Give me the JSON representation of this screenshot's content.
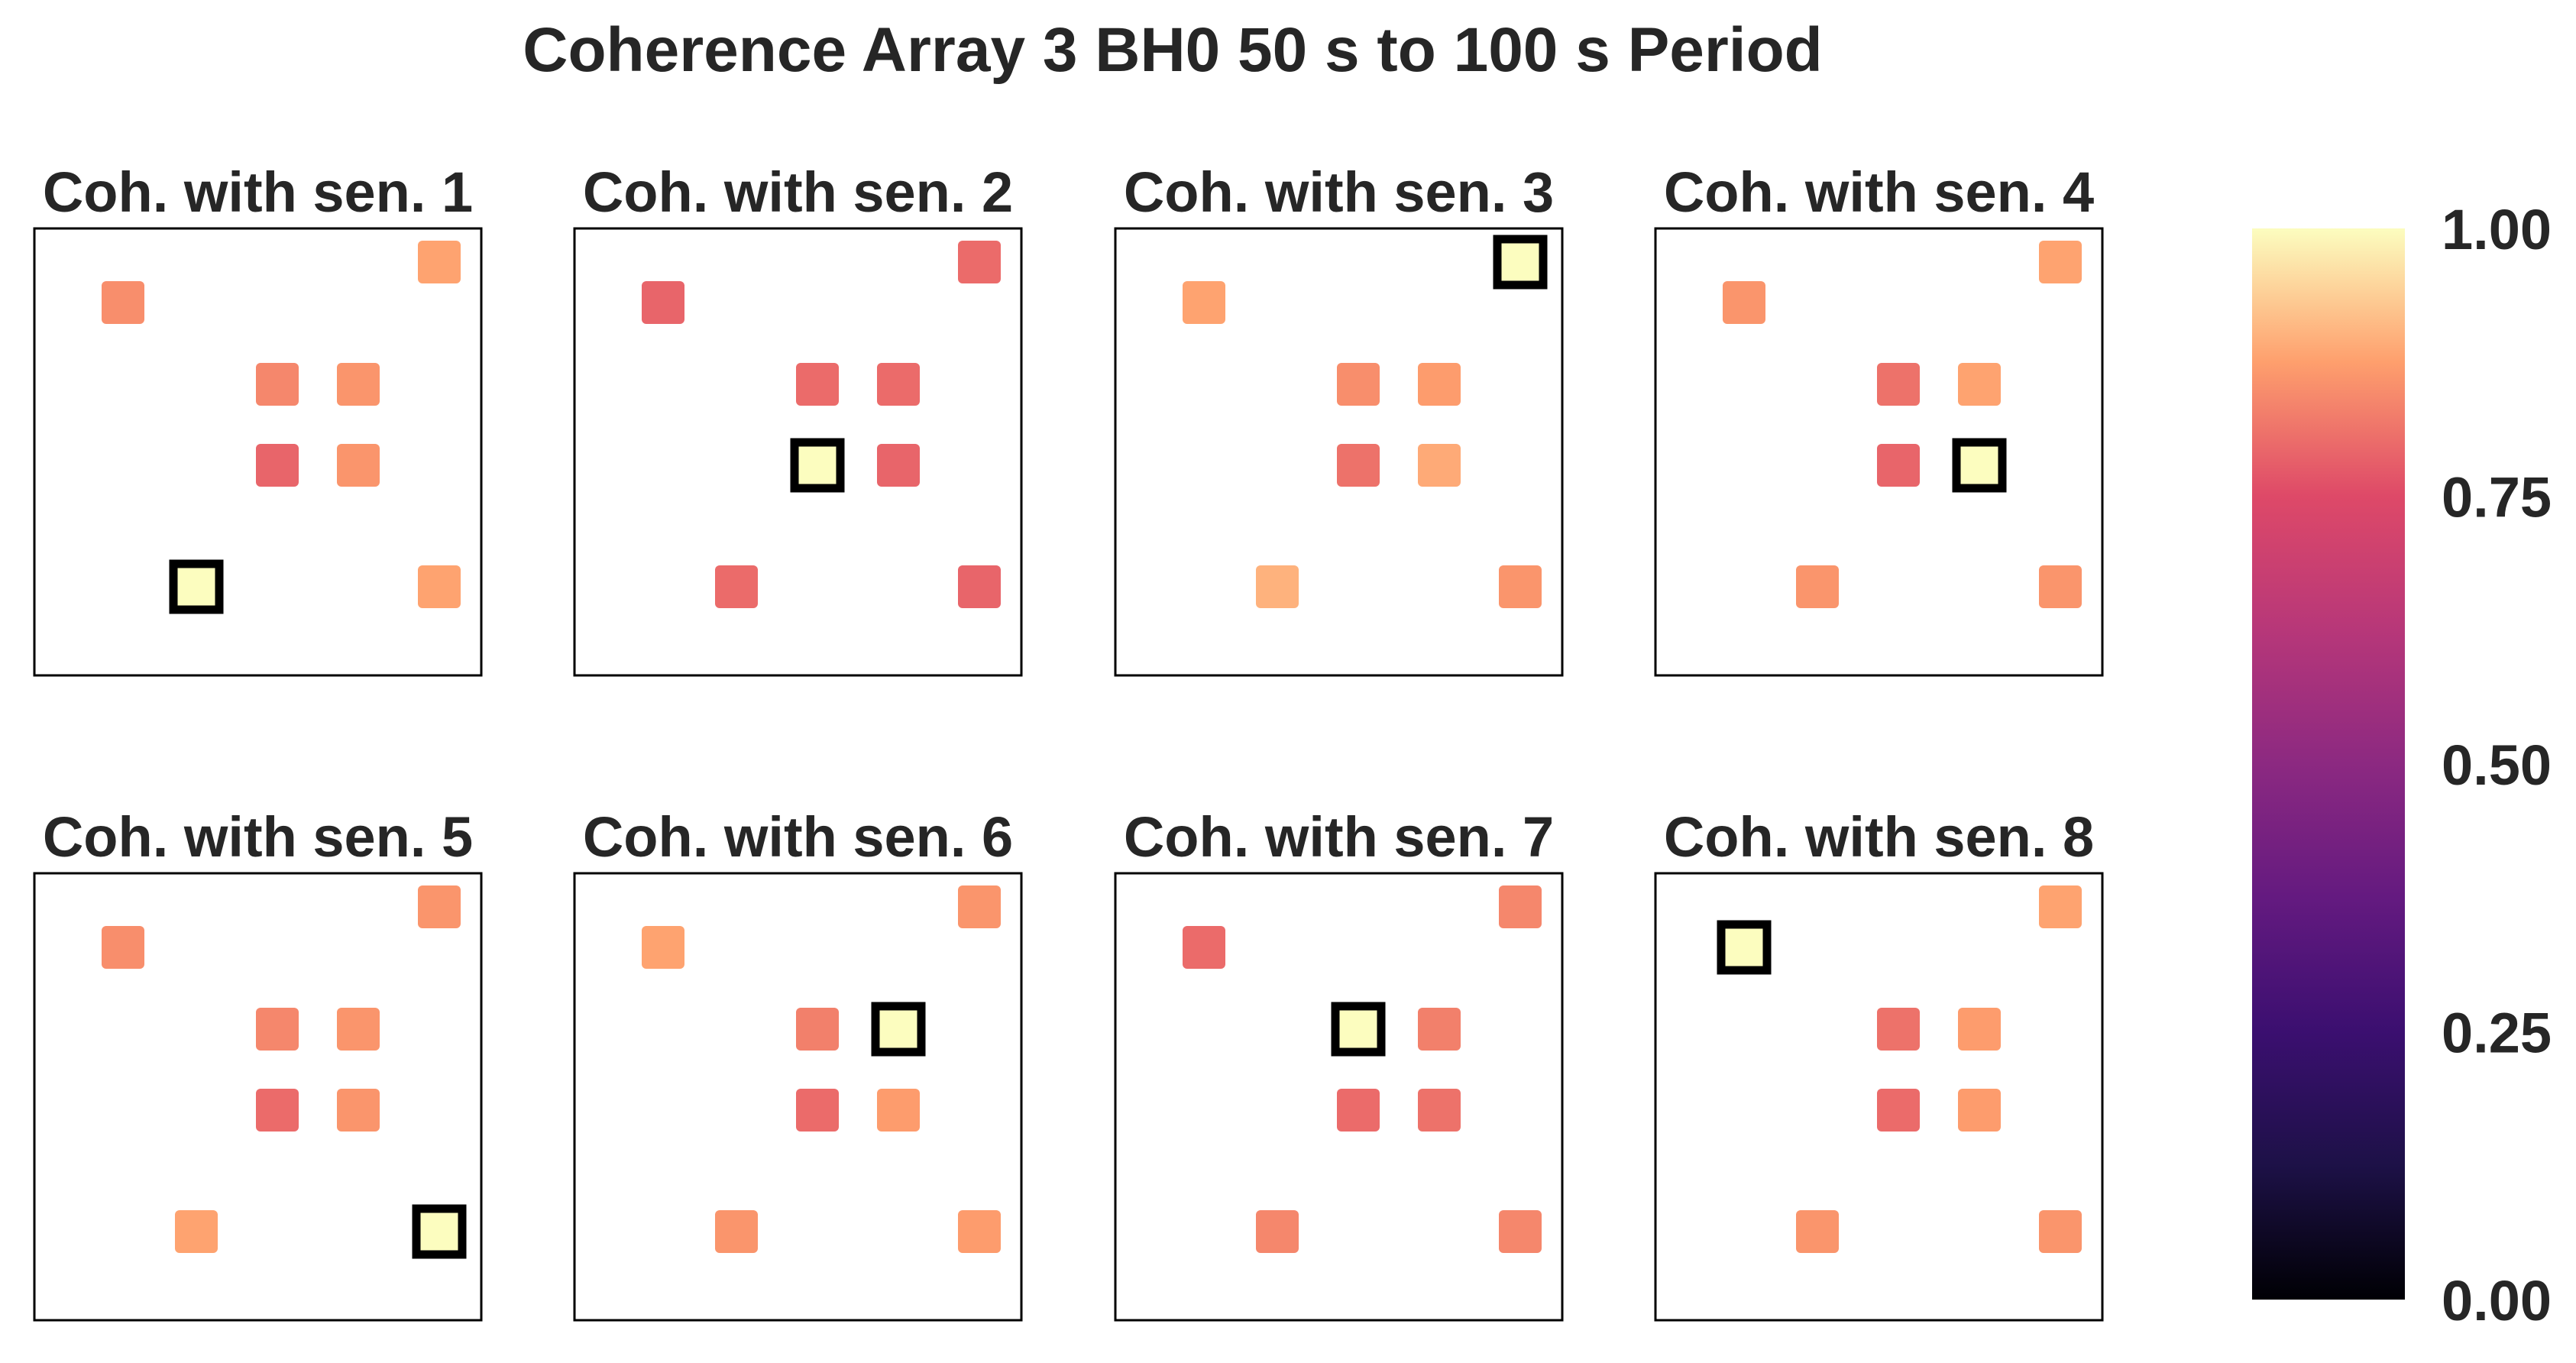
{
  "chart_data": {
    "type": "heatmap",
    "title": "Coherence Array 3 BH0 50 s to 100 s Period",
    "colormap": "magma",
    "colorbar": {
      "range": [
        0,
        1
      ],
      "ticks": [
        "0.00",
        "0.25",
        "0.50",
        "0.75",
        "1.00"
      ]
    },
    "panels": [
      {
        "title": "Coh. with sen. 1",
        "reference_sensor": 1,
        "sensors": [
          {
            "col": 1,
            "row": 5,
            "value": 1.0,
            "reference": true
          },
          {
            "col": 0,
            "row": 1,
            "value": 0.85
          },
          {
            "col": 2,
            "row": 3,
            "value": 0.84
          },
          {
            "col": 3,
            "row": 3,
            "value": 0.86
          },
          {
            "col": 2,
            "row": 4,
            "value": 0.79
          },
          {
            "col": 3,
            "row": 4,
            "value": 0.86
          },
          {
            "col": 4,
            "row": 0,
            "value": 0.88
          },
          {
            "col": 4,
            "row": 5,
            "value": 0.88
          }
        ]
      },
      {
        "title": "Coh. with sen. 2",
        "reference_sensor": 2,
        "sensors": [
          {
            "col": 2,
            "row": 4,
            "value": 1.0,
            "reference": true
          },
          {
            "col": 0,
            "row": 1,
            "value": 0.79
          },
          {
            "col": 2,
            "row": 3,
            "value": 0.8
          },
          {
            "col": 3,
            "row": 3,
            "value": 0.8
          },
          {
            "col": 3,
            "row": 4,
            "value": 0.79
          },
          {
            "col": 4,
            "row": 0,
            "value": 0.8
          },
          {
            "col": 1,
            "row": 5,
            "value": 0.8
          },
          {
            "col": 4,
            "row": 5,
            "value": 0.79
          }
        ]
      },
      {
        "title": "Coh. with sen. 3",
        "reference_sensor": 3,
        "sensors": [
          {
            "col": 4,
            "row": 0,
            "value": 1.0,
            "reference": true
          },
          {
            "col": 0,
            "row": 1,
            "value": 0.88
          },
          {
            "col": 2,
            "row": 3,
            "value": 0.85
          },
          {
            "col": 3,
            "row": 3,
            "value": 0.87
          },
          {
            "col": 2,
            "row": 4,
            "value": 0.81
          },
          {
            "col": 3,
            "row": 4,
            "value": 0.89
          },
          {
            "col": 1,
            "row": 5,
            "value": 0.9
          },
          {
            "col": 4,
            "row": 5,
            "value": 0.86
          }
        ]
      },
      {
        "title": "Coh. with sen. 4",
        "reference_sensor": 4,
        "sensors": [
          {
            "col": 3,
            "row": 4,
            "value": 1.0,
            "reference": true
          },
          {
            "col": 0,
            "row": 1,
            "value": 0.86
          },
          {
            "col": 2,
            "row": 3,
            "value": 0.81
          },
          {
            "col": 3,
            "row": 3,
            "value": 0.88
          },
          {
            "col": 2,
            "row": 4,
            "value": 0.79
          },
          {
            "col": 4,
            "row": 0,
            "value": 0.88
          },
          {
            "col": 1,
            "row": 5,
            "value": 0.86
          },
          {
            "col": 4,
            "row": 5,
            "value": 0.86
          }
        ]
      },
      {
        "title": "Coh. with sen. 5",
        "reference_sensor": 5,
        "sensors": [
          {
            "col": 4,
            "row": 5,
            "value": 1.0,
            "reference": true
          },
          {
            "col": 0,
            "row": 1,
            "value": 0.85
          },
          {
            "col": 2,
            "row": 3,
            "value": 0.84
          },
          {
            "col": 3,
            "row": 3,
            "value": 0.86
          },
          {
            "col": 2,
            "row": 4,
            "value": 0.8
          },
          {
            "col": 3,
            "row": 4,
            "value": 0.86
          },
          {
            "col": 4,
            "row": 0,
            "value": 0.86
          },
          {
            "col": 1,
            "row": 5,
            "value": 0.88
          }
        ]
      },
      {
        "title": "Coh. with sen. 6",
        "reference_sensor": 6,
        "sensors": [
          {
            "col": 3,
            "row": 3,
            "value": 1.0,
            "reference": true
          },
          {
            "col": 0,
            "row": 1,
            "value": 0.88
          },
          {
            "col": 2,
            "row": 3,
            "value": 0.83
          },
          {
            "col": 2,
            "row": 4,
            "value": 0.8
          },
          {
            "col": 3,
            "row": 4,
            "value": 0.87
          },
          {
            "col": 4,
            "row": 0,
            "value": 0.86
          },
          {
            "col": 1,
            "row": 5,
            "value": 0.86
          },
          {
            "col": 4,
            "row": 5,
            "value": 0.87
          }
        ]
      },
      {
        "title": "Coh. with sen. 7",
        "reference_sensor": 7,
        "sensors": [
          {
            "col": 2,
            "row": 3,
            "value": 1.0,
            "reference": true
          },
          {
            "col": 0,
            "row": 1,
            "value": 0.8
          },
          {
            "col": 3,
            "row": 3,
            "value": 0.83
          },
          {
            "col": 2,
            "row": 4,
            "value": 0.8
          },
          {
            "col": 3,
            "row": 4,
            "value": 0.81
          },
          {
            "col": 4,
            "row": 0,
            "value": 0.84
          },
          {
            "col": 1,
            "row": 5,
            "value": 0.84
          },
          {
            "col": 4,
            "row": 5,
            "value": 0.84
          }
        ]
      },
      {
        "title": "Coh. with sen. 8",
        "reference_sensor": 8,
        "sensors": [
          {
            "col": 0,
            "row": 1,
            "value": 1.0,
            "reference": true
          },
          {
            "col": 2,
            "row": 3,
            "value": 0.81
          },
          {
            "col": 3,
            "row": 3,
            "value": 0.87
          },
          {
            "col": 2,
            "row": 4,
            "value": 0.8
          },
          {
            "col": 3,
            "row": 4,
            "value": 0.87
          },
          {
            "col": 4,
            "row": 0,
            "value": 0.88
          },
          {
            "col": 1,
            "row": 5,
            "value": 0.86
          },
          {
            "col": 4,
            "row": 5,
            "value": 0.86
          }
        ]
      }
    ]
  }
}
